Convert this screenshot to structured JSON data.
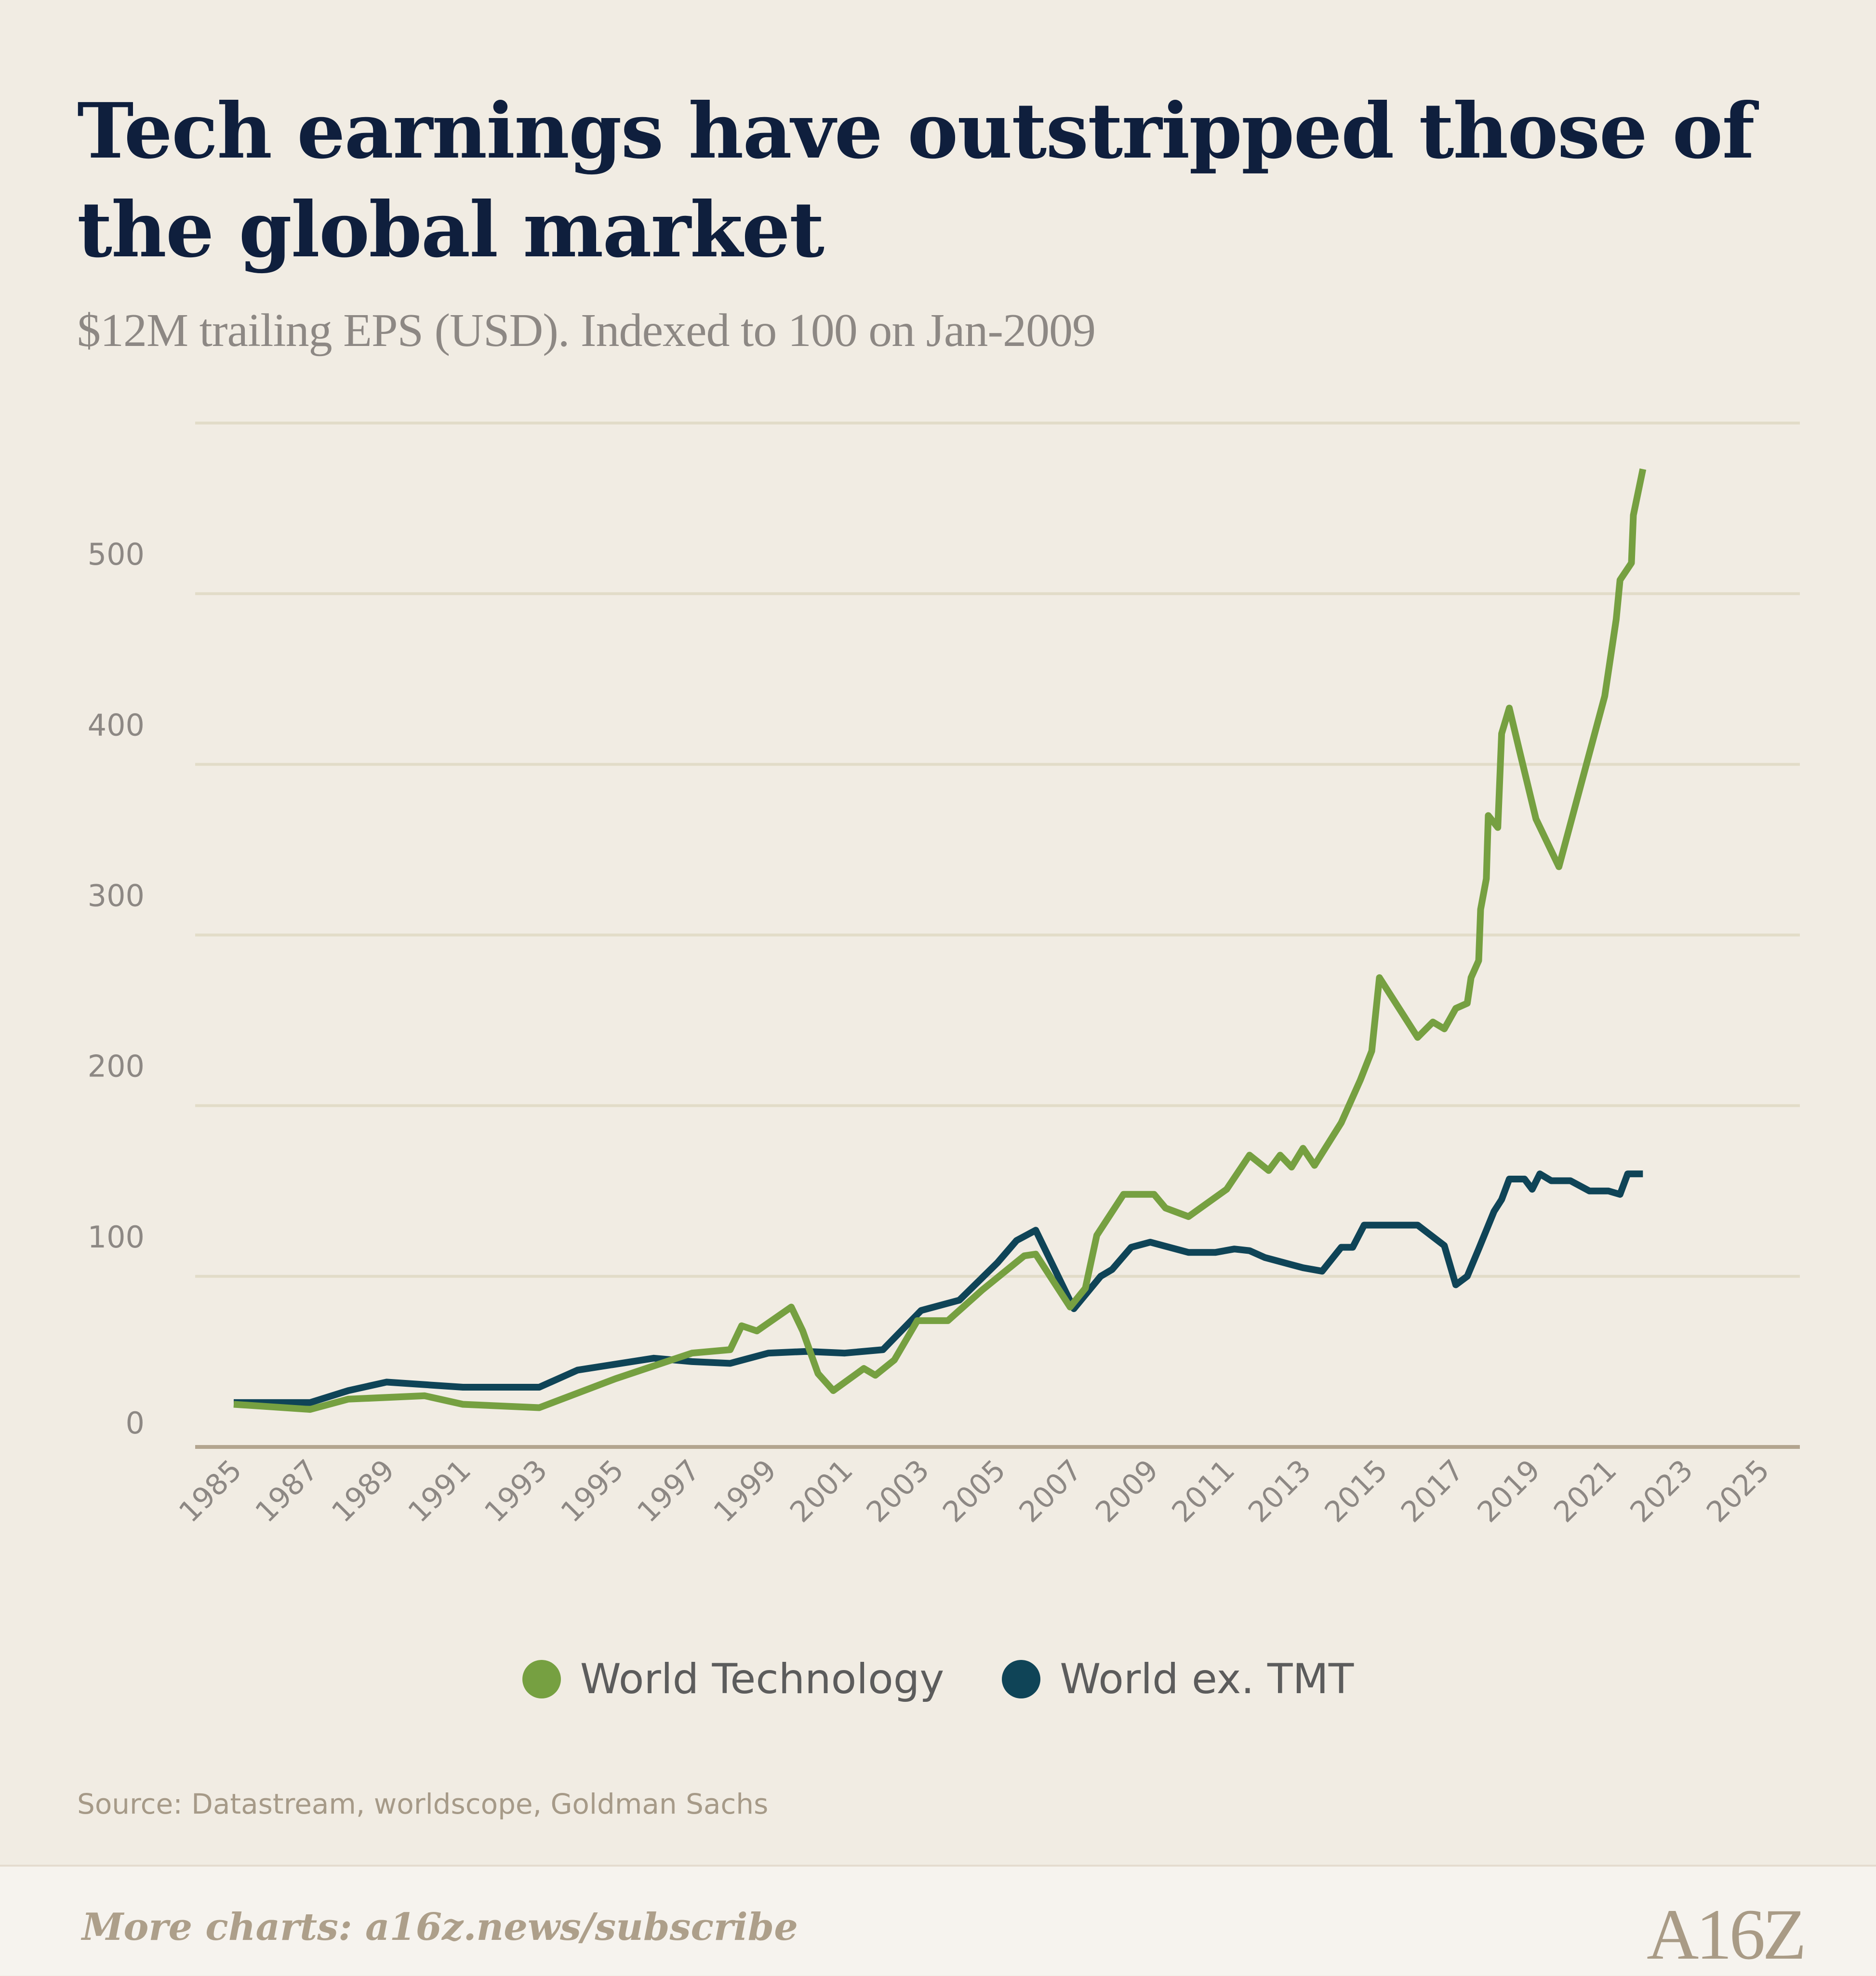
{
  "title": "Tech earnings have outstripped those of the global market",
  "subtitle": "$12M trailing EPS (USD). Indexed to 100 on Jan-2009",
  "source": "Source: Datastream, worldscope, Goldman Sachs",
  "footer": {
    "cta": "More charts: a16z.news/subscribe",
    "logo": "A16Z"
  },
  "colors": {
    "background": "#f1ece3",
    "tech": "#76a041",
    "world": "#0f4457",
    "grid": "#e2dcc8",
    "axis": "#b3a58f",
    "tick": "#8d8884"
  },
  "chart_data": {
    "type": "line",
    "ylim": [
      0,
      600
    ],
    "xlim": [
      1985,
      2025
    ],
    "yticks": [
      0,
      100,
      200,
      300,
      400,
      500,
      600
    ],
    "xticks": [
      1985,
      1987,
      1989,
      1991,
      1993,
      1995,
      1997,
      1999,
      2001,
      2003,
      2005,
      2007,
      2009,
      2011,
      2013,
      2015,
      2017,
      2019,
      2021,
      2023,
      2025
    ],
    "grid": true,
    "legend_position": "bottom",
    "series": [
      {
        "name": "World Technology",
        "color": "#76a041",
        "x": [
          1985,
          1987,
          1988,
          1990,
          1991,
          1993,
          1995,
          1997,
          1998,
          1998.3,
          1998.7,
          1999.6,
          1999.9,
          2000.3,
          2000.7,
          2001.5,
          2001.8,
          2002.3,
          2002.9,
          2003.7,
          2004.6,
          2005.7,
          2006,
          2006.9,
          2007.3,
          2007.6,
          2008.3,
          2009.1,
          2009.4,
          2010,
          2011,
          2011.6,
          2012.1,
          2012.4,
          2012.7,
          2013,
          2013.3,
          2014,
          2014.5,
          2014.8,
          2015,
          2016,
          2016.4,
          2016.7,
          2017,
          2017.3,
          2017.4,
          2017.6,
          2017.65,
          2017.8,
          2017.85,
          2018.1,
          2018.2,
          2018.4,
          2018.7,
          2019.1,
          2019.7,
          2020.9,
          2021.2,
          2021.3,
          2021.6,
          2021.65,
          2021.9
        ],
        "y": [
          25,
          22,
          28,
          30,
          25,
          23,
          40,
          55,
          57,
          71,
          68,
          82,
          68,
          43,
          33,
          46,
          42,
          51,
          74,
          74,
          92,
          112,
          113,
          82,
          93,
          124,
          148,
          148,
          140,
          135,
          151,
          171,
          162,
          171,
          164,
          175,
          165,
          190,
          215,
          232,
          275,
          240,
          249,
          245,
          257,
          260,
          275,
          285,
          315,
          333,
          370,
          363,
          418,
          433,
          405,
          368,
          340,
          440,
          485,
          508,
          518,
          546,
          573
        ]
      },
      {
        "name": "World ex. TMT",
        "color": "#0f4457",
        "x": [
          1985,
          1987,
          1988,
          1989,
          1991,
          1992,
          1993,
          1994,
          1996,
          1997,
          1998,
          1999,
          2000,
          2001,
          2002,
          2003,
          2004,
          2005,
          2005.5,
          2006,
          2007,
          2007.7,
          2008,
          2008.5,
          2009,
          2009.5,
          2010,
          2010.7,
          2011.2,
          2011.6,
          2012,
          2013,
          2013.5,
          2014,
          2014.3,
          2014.6,
          2015,
          2016,
          2016.7,
          2017,
          2017.3,
          2017.6,
          2018,
          2018.2,
          2018.4,
          2018.8,
          2019,
          2019.2,
          2019.5,
          2020,
          2020.5,
          2021,
          2021.3,
          2021.5,
          2021.9
        ],
        "y": [
          26,
          26,
          33,
          38,
          35,
          35,
          35,
          45,
          52,
          50,
          49,
          55,
          56,
          55,
          57,
          80,
          86,
          108,
          121,
          127,
          81,
          100,
          104,
          117,
          120,
          117,
          114,
          114,
          116,
          115,
          111,
          105,
          103,
          117,
          117,
          130,
          130,
          130,
          118,
          95,
          100,
          116,
          138,
          145,
          157,
          157,
          151,
          160,
          156,
          156,
          150,
          150,
          148,
          160,
          160
        ]
      }
    ]
  }
}
